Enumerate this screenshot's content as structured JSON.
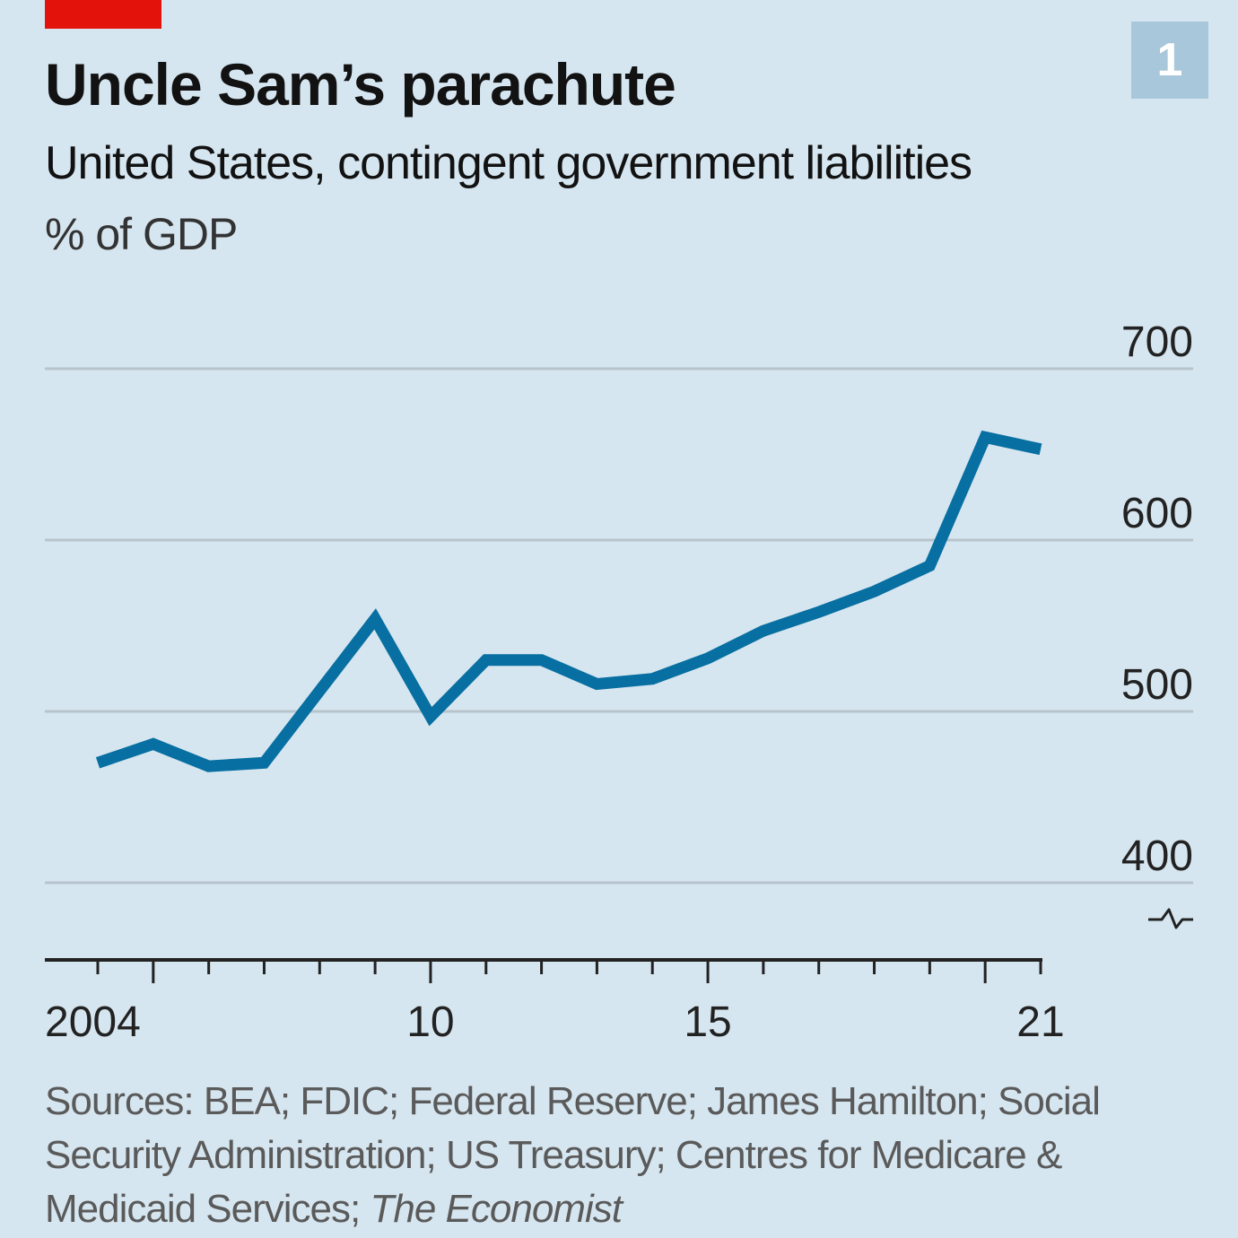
{
  "header": {
    "badge": "1",
    "title": "Uncle Sam’s parachute",
    "subtitle": "United States, contingent government liabilities",
    "units": "% of GDP"
  },
  "colors": {
    "background": "#d6e6f0",
    "line": "#076fa1",
    "accent_red": "#e3120b",
    "badge": "#a9c7da",
    "gridline": "#b7c4cc"
  },
  "footer": {
    "source_text": "Sources: BEA; FDIC; Federal Reserve; James Hamilton; Social Security Administration; US Treasury; Centres for Medicare & Medicaid Services; ",
    "source_italic": "The Economist"
  },
  "chart_data": {
    "type": "line",
    "title": "Uncle Sam’s parachute",
    "subtitle": "United States, contingent government liabilities",
    "xlabel": "",
    "ylabel": "% of GDP",
    "x": [
      2004,
      2005,
      2006,
      2007,
      2008,
      2009,
      2010,
      2011,
      2012,
      2013,
      2014,
      2015,
      2016,
      2017,
      2018,
      2019,
      2020,
      2021
    ],
    "series": [
      {
        "name": "Contingent government liabilities",
        "values": [
          470,
          481,
          468,
          470,
          512,
          554,
          497,
          530,
          530,
          516,
          519,
          531,
          547,
          558,
          570,
          585,
          660,
          653
        ]
      }
    ],
    "ylim": [
      400,
      700
    ],
    "yticks": [
      400,
      500,
      600,
      700
    ],
    "ytick_labels": [
      "400",
      "500",
      "600",
      "700"
    ],
    "xlim": [
      2004,
      2021
    ],
    "xticks_major": [
      2004,
      2010,
      2015,
      2021
    ],
    "xtick_labels": [
      "2004",
      "10",
      "15",
      "21"
    ],
    "axis_break": true,
    "grid": "horizontal",
    "legend": "none"
  }
}
